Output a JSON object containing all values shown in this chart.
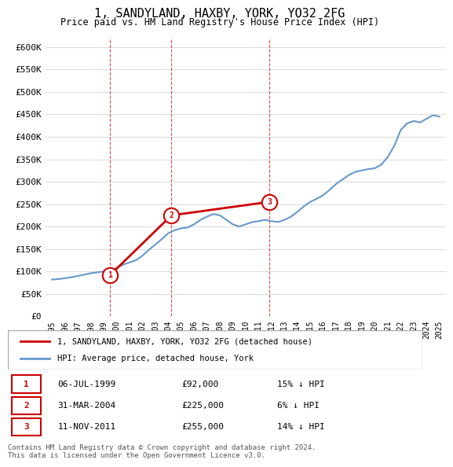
{
  "title": "1, SANDYLAND, HAXBY, YORK, YO32 2FG",
  "subtitle": "Price paid vs. HM Land Registry's House Price Index (HPI)",
  "background_color": "#ffffff",
  "plot_bg_color": "#ffffff",
  "grid_color": "#dddddd",
  "ylim": [
    0,
    620000
  ],
  "yticks": [
    0,
    50000,
    100000,
    150000,
    200000,
    250000,
    300000,
    350000,
    400000,
    450000,
    500000,
    550000,
    600000
  ],
  "ytick_labels": [
    "£0",
    "£50K",
    "£100K",
    "£150K",
    "£200K",
    "£250K",
    "£300K",
    "£350K",
    "£400K",
    "£450K",
    "£500K",
    "£550K",
    "£600K"
  ],
  "xlim_start": 1995.0,
  "xlim_end": 2025.5,
  "hpi_color": "#6699cc",
  "price_color": "#cc0000",
  "marker_color": "#cc0000",
  "hpi_line": {
    "years": [
      1995,
      1995.5,
      1996,
      1996.5,
      1997,
      1997.5,
      1998,
      1998.5,
      1999,
      1999.5,
      2000,
      2000.5,
      2001,
      2001.5,
      2002,
      2002.5,
      2003,
      2003.5,
      2004,
      2004.5,
      2005,
      2005.5,
      2006,
      2006.5,
      2007,
      2007.5,
      2008,
      2008.5,
      2009,
      2009.5,
      2010,
      2010.5,
      2011,
      2011.5,
      2012,
      2012.5,
      2013,
      2013.5,
      2014,
      2014.5,
      2015,
      2015.5,
      2016,
      2016.5,
      2017,
      2017.5,
      2018,
      2018.5,
      2019,
      2019.5,
      2020,
      2020.5,
      2021,
      2021.5,
      2022,
      2022.5,
      2023,
      2023.5,
      2024,
      2024.5,
      2025
    ],
    "values": [
      82000,
      83000,
      85000,
      87000,
      90000,
      93000,
      96000,
      98000,
      100000,
      102000,
      108000,
      115000,
      120000,
      125000,
      135000,
      148000,
      160000,
      172000,
      185000,
      192000,
      196000,
      198000,
      205000,
      215000,
      222000,
      228000,
      225000,
      215000,
      205000,
      200000,
      205000,
      210000,
      212000,
      215000,
      212000,
      210000,
      215000,
      222000,
      233000,
      245000,
      255000,
      262000,
      270000,
      282000,
      295000,
      305000,
      315000,
      322000,
      325000,
      328000,
      330000,
      338000,
      355000,
      380000,
      415000,
      430000,
      435000,
      432000,
      440000,
      448000,
      445000
    ]
  },
  "price_line": {
    "years": [
      1999.5,
      2004.25,
      2011.85
    ],
    "values": [
      92000,
      225000,
      255000
    ]
  },
  "sales": [
    {
      "num": 1,
      "year": 1999.5,
      "value": 92000,
      "date": "06-JUL-1999",
      "price": "£92,000",
      "hpi_diff": "15% ↓ HPI"
    },
    {
      "num": 2,
      "year": 2004.25,
      "value": 225000,
      "date": "31-MAR-2004",
      "price": "£225,000",
      "hpi_diff": "6% ↓ HPI"
    },
    {
      "num": 3,
      "year": 2011.85,
      "value": 255000,
      "date": "11-NOV-2011",
      "price": "£255,000",
      "hpi_diff": "14% ↓ HPI"
    }
  ],
  "legend_label_price": "1, SANDYLAND, HAXBY, YORK, YO32 2FG (detached house)",
  "legend_label_hpi": "HPI: Average price, detached house, York",
  "footer": "Contains HM Land Registry data © Crown copyright and database right 2024.\nThis data is licensed under the Open Government Licence v3.0.",
  "dashed_year_lines": [
    1999.5,
    2004.25,
    2011.85
  ],
  "marker_outline_color": "#cc0000"
}
